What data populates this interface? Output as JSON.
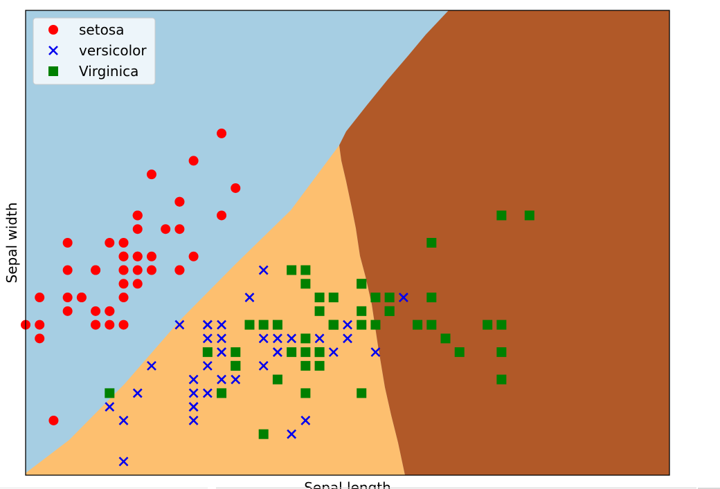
{
  "chart_data": {
    "type": "scatter",
    "title": "",
    "xlabel": "Sepal length",
    "ylabel": "Sepal width",
    "xlim": [
      4.3,
      8.9
    ],
    "ylim": [
      1.9,
      5.3
    ],
    "legend_position": "top-left",
    "region_colors": {
      "setosa": "#a6cee3",
      "versicolor": "#fdbf6f",
      "virginica": "#b15928"
    },
    "series": [
      {
        "name": "setosa",
        "marker": "circle",
        "color": "#ff0000",
        "points": [
          [
            5.1,
            3.5
          ],
          [
            4.9,
            3.0
          ],
          [
            4.7,
            3.2
          ],
          [
            4.6,
            3.1
          ],
          [
            5.0,
            3.6
          ],
          [
            5.4,
            3.9
          ],
          [
            4.6,
            3.4
          ],
          [
            5.0,
            3.4
          ],
          [
            4.4,
            2.9
          ],
          [
            4.9,
            3.1
          ],
          [
            5.4,
            3.7
          ],
          [
            4.8,
            3.4
          ],
          [
            4.8,
            3.0
          ],
          [
            4.3,
            3.0
          ],
          [
            5.8,
            4.0
          ],
          [
            5.7,
            4.4
          ],
          [
            5.4,
            3.9
          ],
          [
            5.1,
            3.5
          ],
          [
            5.7,
            3.8
          ],
          [
            5.1,
            3.8
          ],
          [
            5.4,
            3.4
          ],
          [
            5.1,
            3.7
          ],
          [
            4.6,
            3.6
          ],
          [
            5.1,
            3.3
          ],
          [
            4.8,
            3.4
          ],
          [
            5.0,
            3.0
          ],
          [
            5.0,
            3.4
          ],
          [
            5.2,
            3.5
          ],
          [
            5.2,
            3.4
          ],
          [
            4.7,
            3.2
          ],
          [
            4.8,
            3.1
          ],
          [
            5.4,
            3.4
          ],
          [
            5.2,
            4.1
          ],
          [
            5.5,
            4.2
          ],
          [
            4.9,
            3.1
          ],
          [
            5.0,
            3.2
          ],
          [
            5.5,
            3.5
          ],
          [
            4.9,
            3.6
          ],
          [
            4.4,
            3.0
          ],
          [
            5.1,
            3.4
          ],
          [
            5.0,
            3.5
          ],
          [
            4.5,
            2.3
          ],
          [
            4.4,
            3.2
          ],
          [
            5.0,
            3.5
          ],
          [
            5.1,
            3.8
          ],
          [
            4.8,
            3.0
          ],
          [
            5.1,
            3.8
          ],
          [
            4.6,
            3.2
          ],
          [
            5.3,
            3.7
          ],
          [
            5.0,
            3.3
          ]
        ]
      },
      {
        "name": "versicolor",
        "marker": "x",
        "color": "#0000ee",
        "points": [
          [
            7.0,
            3.2
          ],
          [
            6.4,
            3.2
          ],
          [
            6.9,
            3.1
          ],
          [
            5.5,
            2.3
          ],
          [
            6.5,
            2.8
          ],
          [
            5.7,
            2.8
          ],
          [
            6.3,
            3.3
          ],
          [
            4.9,
            2.4
          ],
          [
            6.6,
            2.9
          ],
          [
            5.2,
            2.7
          ],
          [
            5.0,
            2.0
          ],
          [
            5.9,
            3.0
          ],
          [
            6.0,
            2.2
          ],
          [
            6.1,
            2.9
          ],
          [
            5.6,
            2.9
          ],
          [
            6.7,
            3.1
          ],
          [
            5.6,
            3.0
          ],
          [
            5.8,
            2.7
          ],
          [
            6.2,
            2.2
          ],
          [
            5.6,
            2.5
          ],
          [
            5.9,
            3.2
          ],
          [
            6.1,
            2.8
          ],
          [
            6.3,
            2.5
          ],
          [
            6.1,
            2.8
          ],
          [
            6.4,
            2.9
          ],
          [
            6.6,
            3.0
          ],
          [
            6.8,
            2.8
          ],
          [
            6.7,
            3.0
          ],
          [
            6.0,
            2.9
          ],
          [
            5.7,
            2.6
          ],
          [
            5.5,
            2.4
          ],
          [
            5.5,
            2.4
          ],
          [
            5.8,
            2.7
          ],
          [
            6.0,
            2.7
          ],
          [
            5.4,
            3.0
          ],
          [
            6.0,
            3.4
          ],
          [
            6.7,
            3.1
          ],
          [
            6.3,
            2.3
          ],
          [
            5.6,
            3.0
          ],
          [
            5.5,
            2.5
          ],
          [
            5.5,
            2.6
          ],
          [
            6.1,
            3.0
          ],
          [
            5.8,
            2.6
          ],
          [
            5.0,
            2.3
          ],
          [
            5.6,
            2.7
          ],
          [
            5.7,
            3.0
          ],
          [
            5.7,
            2.9
          ],
          [
            6.2,
            2.9
          ],
          [
            5.1,
            2.5
          ],
          [
            5.7,
            2.8
          ]
        ]
      },
      {
        "name": "Virginica",
        "marker": "square",
        "color": "#008000",
        "points": [
          [
            6.3,
            3.3
          ],
          [
            5.8,
            2.7
          ],
          [
            7.1,
            3.0
          ],
          [
            6.3,
            2.9
          ],
          [
            6.5,
            3.0
          ],
          [
            7.6,
            3.0
          ],
          [
            4.9,
            2.5
          ],
          [
            7.3,
            2.9
          ],
          [
            6.7,
            2.5
          ],
          [
            7.2,
            3.6
          ],
          [
            6.5,
            3.2
          ],
          [
            6.4,
            2.7
          ],
          [
            6.8,
            3.0
          ],
          [
            5.7,
            2.5
          ],
          [
            5.8,
            2.8
          ],
          [
            6.4,
            3.2
          ],
          [
            6.5,
            3.0
          ],
          [
            7.7,
            3.8
          ],
          [
            7.7,
            2.6
          ],
          [
            6.0,
            2.2
          ],
          [
            6.9,
            3.2
          ],
          [
            5.6,
            2.8
          ],
          [
            7.7,
            2.8
          ],
          [
            6.3,
            2.7
          ],
          [
            6.7,
            3.3
          ],
          [
            7.2,
            3.2
          ],
          [
            6.2,
            2.8
          ],
          [
            6.1,
            3.0
          ],
          [
            6.4,
            2.8
          ],
          [
            7.2,
            3.0
          ],
          [
            7.4,
            2.8
          ],
          [
            7.9,
            3.8
          ],
          [
            6.4,
            2.8
          ],
          [
            6.3,
            2.8
          ],
          [
            6.1,
            2.6
          ],
          [
            7.7,
            3.0
          ],
          [
            6.3,
            3.4
          ],
          [
            6.4,
            3.1
          ],
          [
            6.0,
            3.0
          ],
          [
            6.9,
            3.1
          ],
          [
            6.7,
            3.1
          ],
          [
            6.9,
            3.1
          ],
          [
            5.8,
            2.7
          ],
          [
            6.8,
            3.2
          ],
          [
            6.7,
            3.3
          ],
          [
            6.7,
            3.0
          ],
          [
            6.3,
            2.5
          ],
          [
            6.5,
            3.0
          ],
          [
            6.2,
            3.4
          ],
          [
            5.9,
            3.0
          ]
        ]
      }
    ]
  }
}
